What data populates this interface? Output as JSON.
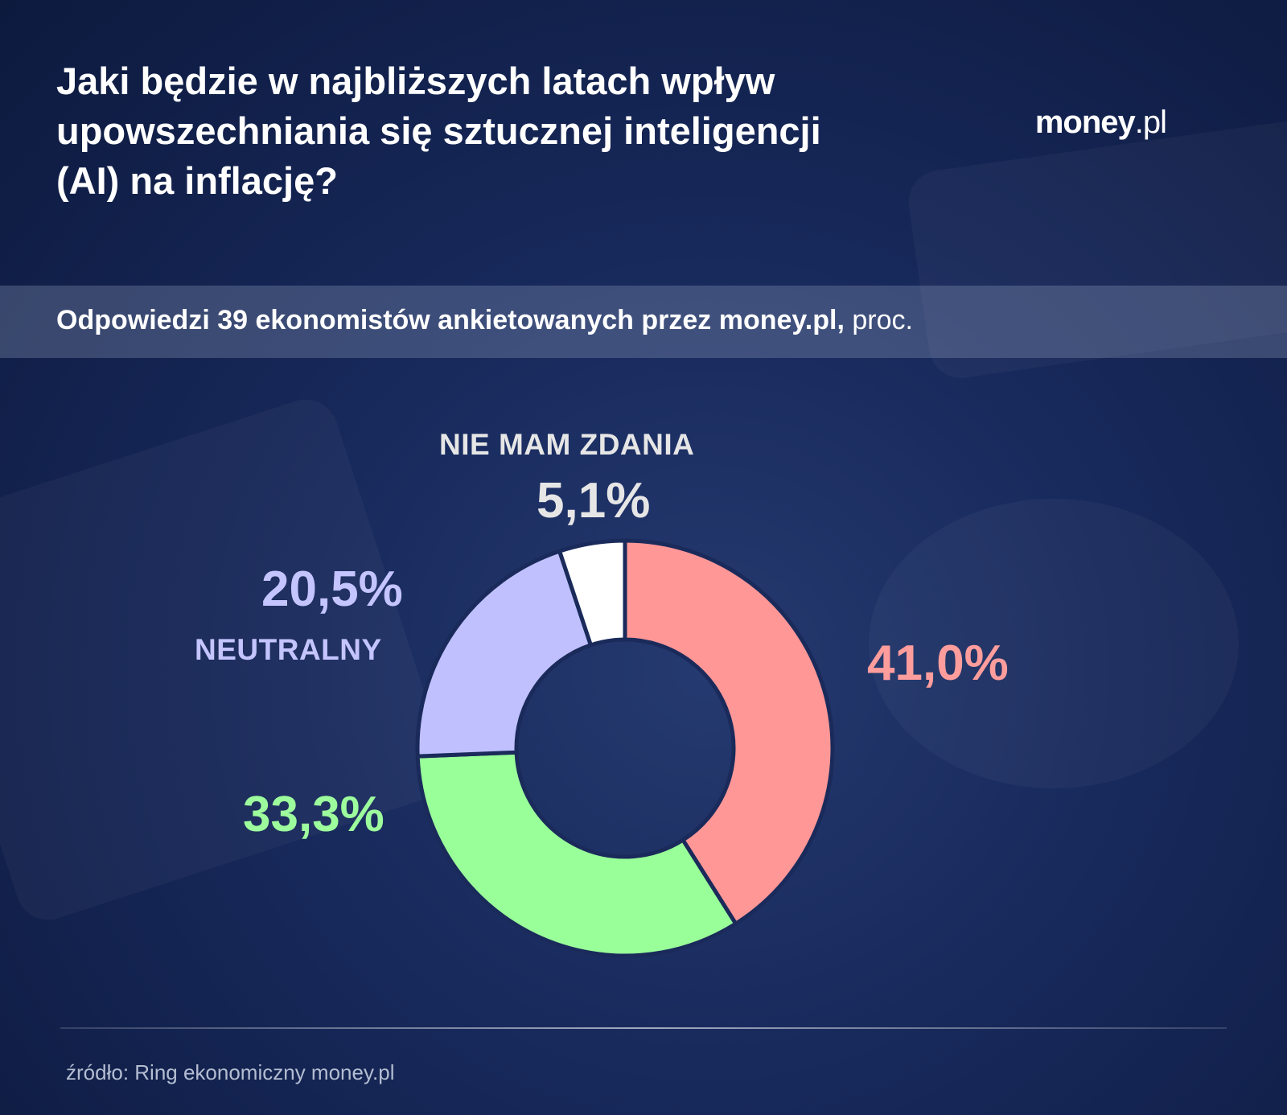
{
  "title": "Jaki będzie w najbliższych latach wpływ upowszechniania się sztucznej inteligencji (AI) na inflację?",
  "logo": {
    "brand": "money",
    "tld": ".pl"
  },
  "subtitle": {
    "strong": "Odpowiedzi 39 ekonomistów ankietowanych przez money.pl,",
    "unit": " proc."
  },
  "source": "źródło: Ring ekonomiczny money.pl",
  "chart_data": {
    "type": "pie",
    "title": "",
    "slices": [
      {
        "value": 41.0,
        "label": "41,0%",
        "category": "",
        "color": "#ff9797"
      },
      {
        "value": 33.3,
        "label": "33,3%",
        "category": "",
        "color": "#99ff99"
      },
      {
        "value": 20.5,
        "label": "20,5%",
        "category": "NEUTRALNY",
        "color": "#c0c0ff"
      },
      {
        "value": 5.1,
        "label": "5,1%",
        "category": "NIE MAM ZDANIA",
        "color": "#ffffff"
      }
    ],
    "label_colors": [
      "#ff9d9d",
      "#9dfd9d",
      "#c4c4ff",
      "#e6e6e6"
    ]
  }
}
